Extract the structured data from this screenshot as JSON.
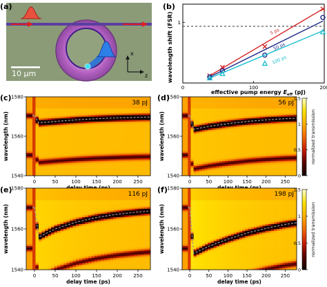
{
  "panel_labels": [
    "(a)",
    "(b)",
    "(c)",
    "(d)",
    "(e)",
    "(f)"
  ],
  "micrograph": {
    "scale_bar_label": "10 µm",
    "axis_x_label": "x",
    "axis_z_label": "z"
  },
  "colors": {
    "colormap": [
      "#100000",
      "#5a0000",
      "#c51b00",
      "#f06a00",
      "#ffb000",
      "#ffe000",
      "#ffffc8"
    ],
    "series_5ps": "#d62728",
    "series_50ps": "#1f2a8a",
    "series_100ps": "#17becf",
    "guide_line": "#9a9aa0"
  },
  "chart_data": [
    {
      "panel": "(b)",
      "type": "scatter",
      "xlabel_main": "effective pump energy ",
      "xlabel_symbol": "E",
      "xlabel_sub": "eff",
      "xlabel_unit": " (pJ)",
      "ylabel": "wavelength shift (FSR)",
      "xlim": [
        0,
        200
      ],
      "ylim": [
        0,
        1.3
      ],
      "xticks": [
        "0",
        "100",
        "200"
      ],
      "yticks": [
        "1"
      ],
      "reference_line_y": 1,
      "series": [
        {
          "name": "5 ps",
          "marker": "x",
          "x": [
            38,
            56,
            116,
            198
          ],
          "y": [
            0.12,
            0.26,
            0.6,
            1.22
          ],
          "fit": [
            [
              38,
              0.12
            ],
            [
              198,
              1.22
            ]
          ]
        },
        {
          "name": "50 ps",
          "marker": "o",
          "x": [
            38,
            56,
            116,
            198
          ],
          "y": [
            0.1,
            0.2,
            0.46,
            1.08
          ],
          "fit": [
            [
              38,
              0.1
            ],
            [
              198,
              1.02
            ]
          ]
        },
        {
          "name": "100 ps",
          "marker": "triangle",
          "x": [
            38,
            56,
            116,
            198
          ],
          "y": [
            0.08,
            0.15,
            0.32,
            0.84
          ],
          "fit": [
            [
              38,
              0.08
            ],
            [
              198,
              0.86
            ]
          ]
        }
      ]
    },
    {
      "panel": "(c)",
      "type": "heatmap",
      "annotation": "38 pJ",
      "xlabel": "delay time (ps)",
      "ylabel": "wavelength (nm)",
      "xlim": [
        -20,
        280
      ],
      "ylim": [
        1540,
        1580
      ],
      "xticks": [
        "0",
        "50",
        "100",
        "150",
        "200",
        "250"
      ],
      "yticks": [
        "1540",
        "1560",
        "1580"
      ],
      "resonances_nm": [
        1570.5,
        1550.5
      ],
      "shifted_trace": {
        "delay_ps": [
          0,
          10,
          50,
          100,
          150,
          200,
          250,
          280
        ],
        "wavelength_nm": [
          1570.5,
          1566.8,
          1567.5,
          1568.3,
          1568.9,
          1569.3,
          1569.6,
          1569.7
        ]
      }
    },
    {
      "panel": "(d)",
      "type": "heatmap",
      "annotation": "56 pJ",
      "xlabel": "delay time (ps)",
      "ylabel": "wavelength (nm)",
      "xlim": [
        -20,
        280
      ],
      "ylim": [
        1540,
        1580
      ],
      "xticks": [
        "0",
        "50",
        "100",
        "150",
        "200",
        "250"
      ],
      "yticks": [
        "1540",
        "1560",
        "1580"
      ],
      "resonances_nm": [
        1570.5,
        1550.5
      ],
      "shifted_trace": {
        "delay_ps": [
          0,
          10,
          50,
          100,
          150,
          200,
          250,
          280
        ],
        "wavelength_nm": [
          1570.5,
          1563.5,
          1565.0,
          1566.4,
          1567.5,
          1568.3,
          1568.9,
          1569.1
        ]
      }
    },
    {
      "panel": "(e)",
      "type": "heatmap",
      "annotation": "116 pJ",
      "xlabel": "delay time (ps)",
      "ylabel": "wavelength (nm)",
      "xlim": [
        -20,
        280
      ],
      "ylim": [
        1540,
        1580
      ],
      "xticks": [
        "0",
        "50",
        "100",
        "150",
        "200",
        "250"
      ],
      "yticks": [
        "1540",
        "1560",
        "1580"
      ],
      "resonances_nm": [
        1570.5,
        1550.5
      ],
      "shifted_trace": {
        "delay_ps": [
          0,
          10,
          50,
          100,
          150,
          200,
          250,
          280
        ],
        "wavelength_nm": [
          1570.5,
          1556.0,
          1560.0,
          1563.3,
          1565.6,
          1567.2,
          1568.3,
          1568.8
        ]
      }
    },
    {
      "panel": "(f)",
      "type": "heatmap",
      "annotation": "198 pJ",
      "xlabel": "delay time (ps)",
      "ylabel": "wavelength (nm)",
      "xlim": [
        -20,
        280
      ],
      "ylim": [
        1540,
        1580
      ],
      "xticks": [
        "0",
        "50",
        "100",
        "150",
        "200",
        "250"
      ],
      "yticks": [
        "1540",
        "1560",
        "1580"
      ],
      "resonances_nm": [
        1570.5,
        1550.5
      ],
      "shifted_trace": {
        "delay_ps": [
          0,
          10,
          50,
          100,
          150,
          200,
          250,
          280
        ],
        "wavelength_nm": [
          1570.5,
          1548.0,
          1551.5,
          1555.0,
          1558.0,
          1560.3,
          1562.2,
          1563.0
        ]
      }
    }
  ],
  "colorbars": [
    {
      "label": "normalized transmission",
      "ticks": [
        "0",
        "0.5",
        "1",
        "1.5"
      ],
      "range": [
        0,
        1.5
      ]
    },
    {
      "label": "normalized transmission",
      "ticks": [
        "0",
        "0.5",
        "1",
        "1.5"
      ],
      "range": [
        0,
        1.5
      ]
    }
  ]
}
